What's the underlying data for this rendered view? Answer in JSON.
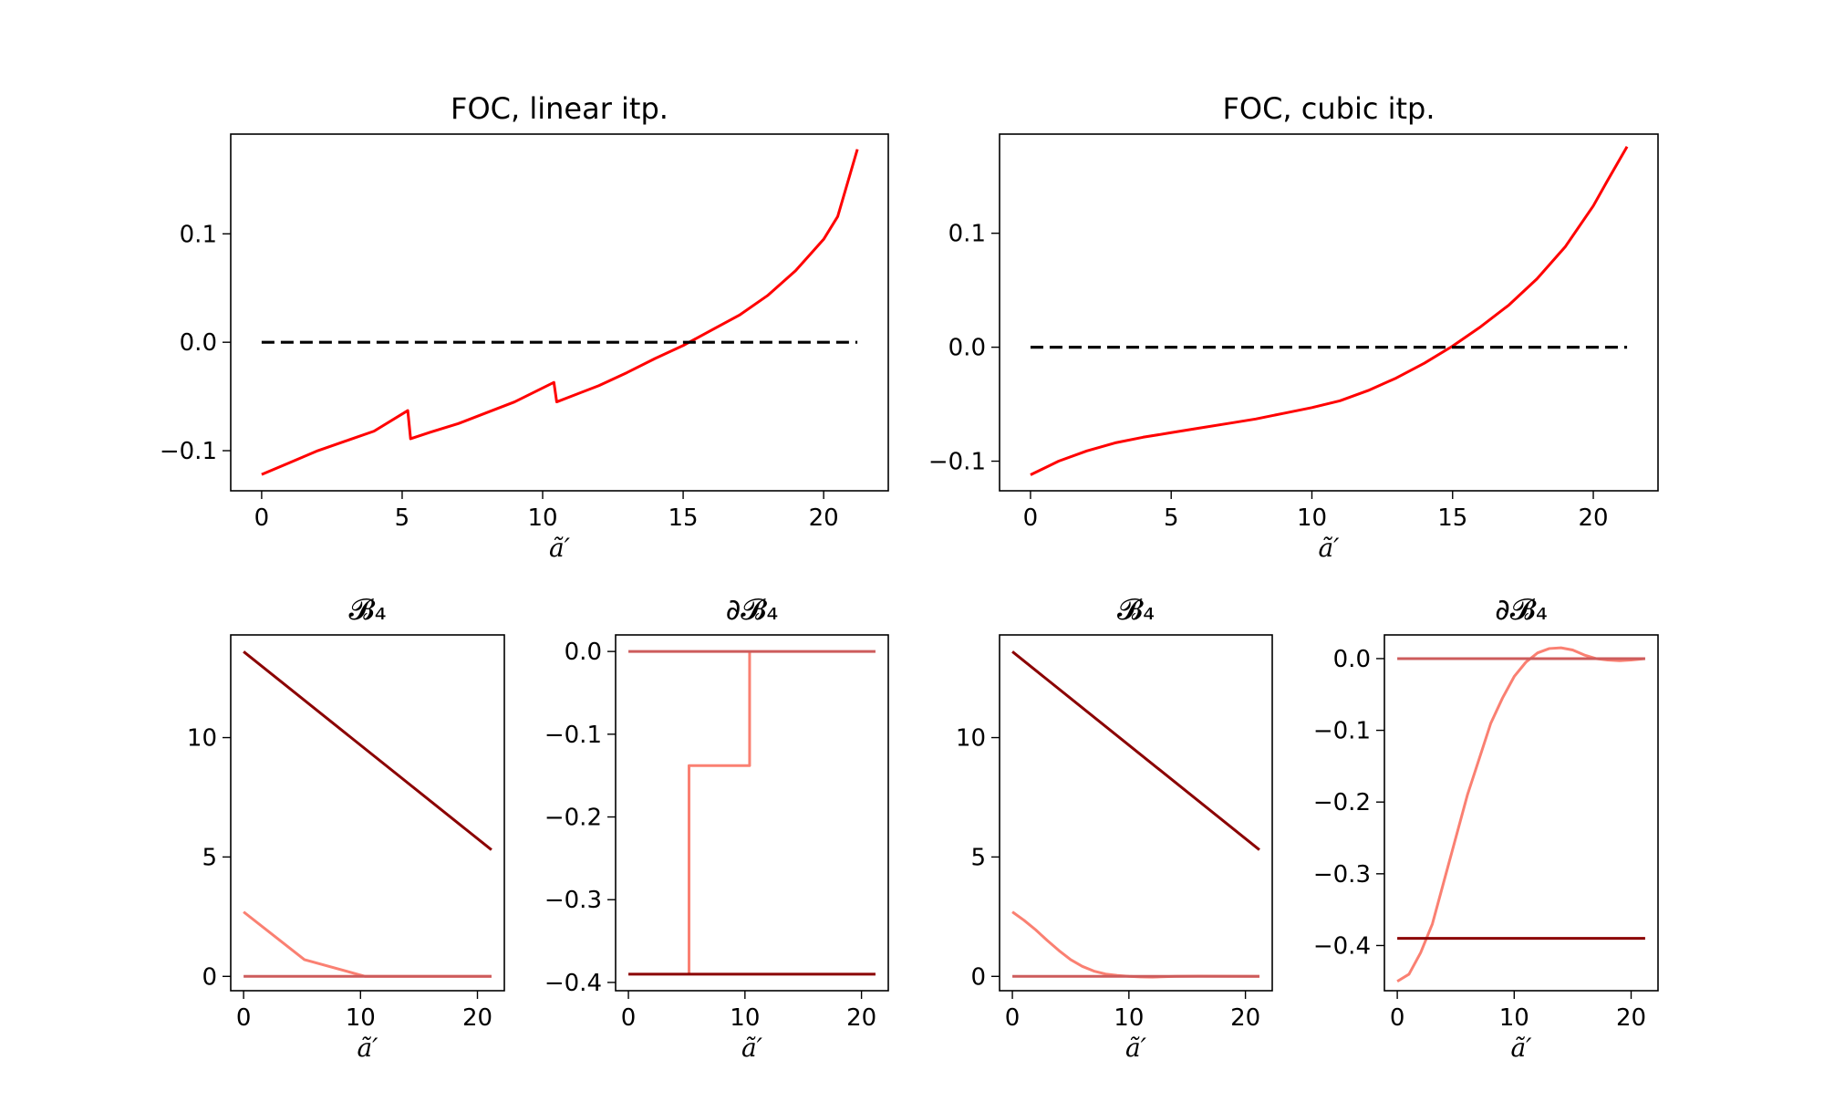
{
  "chart_data": [
    {
      "type": "line",
      "title": "FOC, linear itp.",
      "xlabel": "ã′",
      "ylabel": "",
      "xlim": [
        -1.1,
        22.3
      ],
      "ylim": [
        -0.137,
        0.192
      ],
      "xticks": [
        0,
        5,
        10,
        15,
        20
      ],
      "yticks": [
        -0.1,
        0.0,
        0.1
      ],
      "ytick_labels": [
        "−0.1",
        "0.0",
        "0.1"
      ],
      "grid": false,
      "series": [
        {
          "color": "#ff0000",
          "style": "solid",
          "x": [
            0,
            1,
            2,
            3,
            4,
            5.2,
            5.2,
            5.3,
            6,
            7,
            8,
            9,
            10.4,
            10.4,
            10.5,
            11,
            12,
            13,
            14,
            15,
            15.5,
            16,
            17,
            18,
            19,
            20,
            20.5,
            21.2
          ],
          "y": [
            -0.122,
            -0.111,
            -0.1,
            -0.091,
            -0.082,
            -0.063,
            -0.063,
            -0.089,
            -0.083,
            -0.075,
            -0.065,
            -0.055,
            -0.037,
            -0.037,
            -0.055,
            -0.05,
            -0.04,
            -0.028,
            -0.015,
            -0.003,
            0.004,
            0.011,
            0.025,
            0.043,
            0.066,
            0.095,
            0.116,
            0.178
          ]
        },
        {
          "color": "#000000",
          "style": "dashed",
          "x": [
            0,
            21.2
          ],
          "y": [
            0,
            0
          ]
        }
      ]
    },
    {
      "type": "line",
      "title": "FOC, cubic itp.",
      "xlabel": "ã′",
      "ylabel": "",
      "xlim": [
        -1.1,
        22.3
      ],
      "ylim": [
        -0.126,
        0.187
      ],
      "xticks": [
        0,
        5,
        10,
        15,
        20
      ],
      "yticks": [
        -0.1,
        0.0,
        0.1
      ],
      "ytick_labels": [
        "−0.1",
        "0.0",
        "0.1"
      ],
      "grid": false,
      "series": [
        {
          "color": "#ff0000",
          "style": "solid",
          "x": [
            0,
            1,
            2,
            3,
            4,
            5,
            6,
            7,
            8,
            9,
            10,
            11,
            12,
            13,
            14,
            15,
            16,
            17,
            18,
            19,
            20,
            20.5,
            21.2
          ],
          "y": [
            -0.112,
            -0.1,
            -0.091,
            -0.084,
            -0.079,
            -0.075,
            -0.071,
            -0.067,
            -0.063,
            -0.058,
            -0.053,
            -0.047,
            -0.038,
            -0.027,
            -0.014,
            0.001,
            0.018,
            0.037,
            0.06,
            0.088,
            0.124,
            0.146,
            0.176
          ]
        },
        {
          "color": "#000000",
          "style": "dashed",
          "x": [
            0,
            21.2
          ],
          "y": [
            0,
            0
          ]
        }
      ]
    },
    {
      "type": "line",
      "title": "𝓑₄",
      "xlabel": "ã′",
      "ylabel": "",
      "xlim": [
        -1.1,
        22.3
      ],
      "ylim": [
        -0.6,
        14.3
      ],
      "xticks": [
        0,
        10,
        20
      ],
      "yticks": [
        0,
        5,
        10
      ],
      "ytick_labels": [
        "0",
        "5",
        "10"
      ],
      "grid": false,
      "series": [
        {
          "color": "#8b0000",
          "style": "solid",
          "x": [
            0,
            21.2
          ],
          "y": [
            13.6,
            5.3
          ]
        },
        {
          "color": "#fa8072",
          "style": "solid",
          "x": [
            0,
            5.2,
            10.4,
            21.2
          ],
          "y": [
            2.7,
            0.7,
            0.0,
            0.0
          ]
        },
        {
          "color": "#cd5c5c",
          "style": "solid",
          "x": [
            0,
            21.2
          ],
          "y": [
            0,
            0
          ]
        }
      ]
    },
    {
      "type": "line",
      "title": "∂𝓑₄",
      "xlabel": "ã′",
      "ylabel": "",
      "xlim": [
        -1.1,
        22.3
      ],
      "ylim": [
        -0.41,
        0.02
      ],
      "xticks": [
        0,
        10,
        20
      ],
      "yticks": [
        -0.4,
        -0.3,
        -0.2,
        -0.1,
        0.0
      ],
      "ytick_labels": [
        "−0.4",
        "−0.3",
        "−0.2",
        "−0.1",
        "0.0"
      ],
      "grid": false,
      "series": [
        {
          "color": "#fa8072",
          "style": "solid",
          "x": [
            5.2,
            5.2,
            10.4,
            10.4
          ],
          "y": [
            -0.39,
            -0.138,
            -0.138,
            0.0
          ]
        },
        {
          "color": "#cd5c5c",
          "style": "solid",
          "x": [
            0,
            21.2
          ],
          "y": [
            0,
            0
          ]
        },
        {
          "color": "#8b0000",
          "style": "solid",
          "x": [
            0,
            21.2
          ],
          "y": [
            -0.39,
            -0.39
          ]
        }
      ]
    },
    {
      "type": "line",
      "title": "𝓑₄",
      "xlabel": "ã′",
      "ylabel": "",
      "xlim": [
        -1.1,
        22.3
      ],
      "ylim": [
        -0.6,
        14.3
      ],
      "xticks": [
        0,
        10,
        20
      ],
      "yticks": [
        0,
        5,
        10
      ],
      "ytick_labels": [
        "0",
        "5",
        "10"
      ],
      "grid": false,
      "series": [
        {
          "color": "#8b0000",
          "style": "solid",
          "x": [
            0,
            21.2
          ],
          "y": [
            13.6,
            5.3
          ]
        },
        {
          "color": "#fa8072",
          "style": "solid",
          "x": [
            0,
            1,
            2,
            3,
            4,
            5,
            6,
            7,
            8,
            9,
            10,
            11,
            12,
            14,
            16,
            21.2
          ],
          "y": [
            2.7,
            2.35,
            1.95,
            1.5,
            1.08,
            0.7,
            0.42,
            0.22,
            0.1,
            0.04,
            0.0,
            -0.02,
            -0.03,
            0.0,
            0.01,
            0.0
          ]
        },
        {
          "color": "#cd5c5c",
          "style": "solid",
          "x": [
            0,
            21.2
          ],
          "y": [
            0,
            0
          ]
        }
      ]
    },
    {
      "type": "line",
      "title": "∂𝓑₄",
      "xlabel": "ã′",
      "ylabel": "",
      "xlim": [
        -1.1,
        22.3
      ],
      "ylim": [
        -0.463,
        0.033
      ],
      "xticks": [
        0,
        10,
        20
      ],
      "yticks": [
        -0.4,
        -0.3,
        -0.2,
        -0.1,
        0.0
      ],
      "ytick_labels": [
        "−0.4",
        "−0.3",
        "−0.2",
        "−0.1",
        "0.0"
      ],
      "grid": false,
      "series": [
        {
          "color": "#fa8072",
          "style": "solid",
          "x": [
            0,
            1,
            2,
            3,
            4,
            5,
            6,
            7,
            8,
            9,
            10,
            11,
            12,
            13,
            14,
            15,
            16,
            17,
            18,
            19,
            20,
            21.2
          ],
          "y": [
            -0.45,
            -0.44,
            -0.41,
            -0.37,
            -0.31,
            -0.25,
            -0.19,
            -0.14,
            -0.09,
            -0.055,
            -0.025,
            -0.005,
            0.008,
            0.014,
            0.015,
            0.012,
            0.005,
            0.0,
            -0.002,
            -0.003,
            -0.002,
            0.0
          ]
        },
        {
          "color": "#cd5c5c",
          "style": "solid",
          "x": [
            0,
            21.2
          ],
          "y": [
            0,
            0
          ]
        },
        {
          "color": "#8b0000",
          "style": "solid",
          "x": [
            0,
            21.2
          ],
          "y": [
            -0.39,
            -0.39
          ]
        }
      ]
    }
  ]
}
